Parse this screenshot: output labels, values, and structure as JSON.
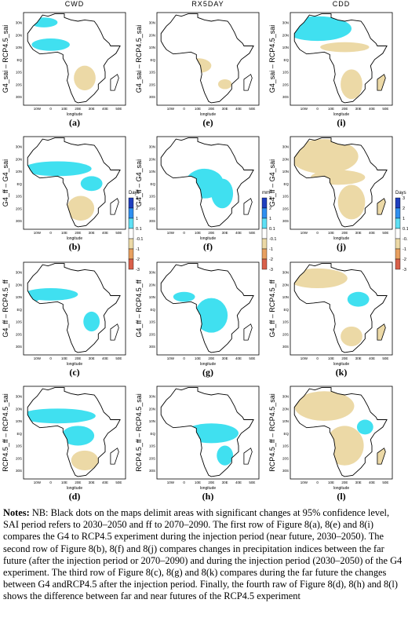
{
  "columns": [
    "CWD",
    "RX5DAY",
    "CDD"
  ],
  "rows": [
    {
      "label": "G4_sai – RCP4.5_sai",
      "panels": [
        "(a)",
        "(e)",
        "(i)"
      ]
    },
    {
      "label": "G4_ff – G4_sai",
      "panels": [
        "(b)",
        "(f)",
        "(j)"
      ]
    },
    {
      "label": "G4_ff – RCP4.5_ff",
      "panels": [
        "(c)",
        "(g)",
        "(k)"
      ]
    },
    {
      "label": "RCP4.5_ff – RCP4.5_sai",
      "panels": [
        "(d)",
        "(h)",
        "(l)"
      ]
    }
  ],
  "map_axes": {
    "yticks": [
      "30N",
      "20N",
      "10N",
      "EQ",
      "10S",
      "20S",
      "30S"
    ],
    "xticks": [
      "10W",
      "0",
      "10E",
      "20E",
      "30E",
      "40E",
      "50E"
    ],
    "xlabel": "longitude"
  },
  "colorbars": [
    {
      "unit": "Days"
    },
    {
      "unit": "mm"
    },
    {
      "unit": "Days"
    }
  ],
  "colorbar_ticks": [
    "3",
    "2",
    "1",
    "0.1",
    "-0.1",
    "-1",
    "-2",
    "-3"
  ],
  "notes": {
    "label": "Notes:",
    "text": "NB: Black dots on the maps delimit areas with significant changes at 95% confidence level, SAI period refers to 2030–2050 and ff to 2070–2090. The first row of Figure 8(a), 8(e) and 8(i) compares the G4 to RCP4.5 experiment during the injection period (near future, 2030–2050). The second row of Figure 8(b), 8(f) and 8(j) compares changes in precipitation indices between the far future (after the injection period or 2070–2090) and during the injection period (2030–2050) of the G4 experiment. The third row of Figure 8(c), 8(g) and 8(k) compares during the far future the changes between G4 andRCP4.5 after the injection period. Finally, the fourth raw of Figure 8(d), 8(h) and 8(l) shows the difference between far and near futures of the RCP4.5 experiment"
  }
}
